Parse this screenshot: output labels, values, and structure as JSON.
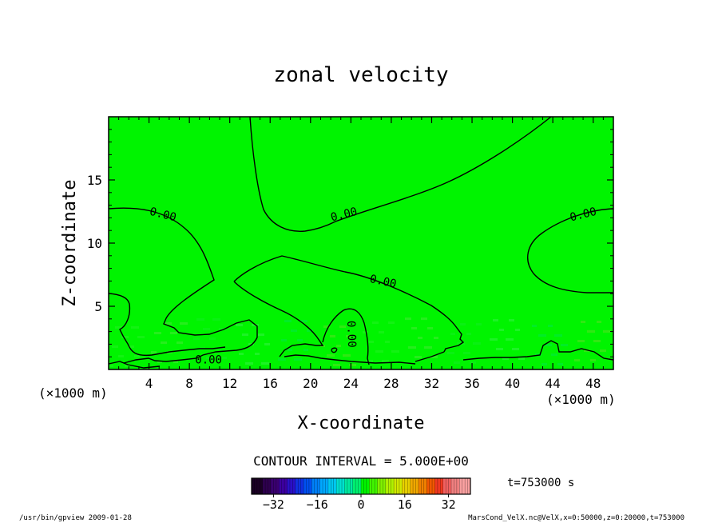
{
  "chart_data": {
    "type": "heatmap",
    "title": "zonal velocity",
    "xlabel": "X-coordinate",
    "ylabel": "Z-coordinate",
    "x_unit_left": "(×1000 m)",
    "x_unit_right": "(×1000 m)",
    "xlim": [
      0,
      50
    ],
    "ylim": [
      0,
      20
    ],
    "x_ticks": [
      4,
      8,
      12,
      16,
      20,
      24,
      28,
      32,
      36,
      40,
      44,
      48
    ],
    "y_ticks": [
      5,
      10,
      15
    ],
    "contour_interval_text": "CONTOUR INTERVAL = 5.000E+00",
    "contour_labels": [
      {
        "text": "0.00",
        "x": 5.4,
        "z": 12.3,
        "angle": 14
      },
      {
        "text": "0.00",
        "x": 23.3,
        "z": 12.3,
        "angle": -14
      },
      {
        "text": "0.00",
        "x": 47.0,
        "z": 12.3,
        "angle": -14
      },
      {
        "text": "0.00",
        "x": 27.2,
        "z": 7.0,
        "angle": 12
      },
      {
        "text": "0.00",
        "x": 24.1,
        "z": 2.8,
        "angle": 88
      },
      {
        "text": "0.00",
        "x": 9.9,
        "z": 0.8,
        "angle": 0
      }
    ],
    "field_color": "#00f400",
    "colorbar": {
      "range": [
        -40,
        40
      ],
      "ticks": [
        -32,
        -16,
        0,
        16,
        32
      ],
      "colors": [
        "#1a0024",
        "#2d004d",
        "#3a0070",
        "#3c00a0",
        "#2a10c8",
        "#1030e0",
        "#0050f0",
        "#0080f8",
        "#00a8ff",
        "#00c8f0",
        "#00e0d0",
        "#00e8a0",
        "#00f070",
        "#00f400",
        "#40f400",
        "#80f000",
        "#b0f000",
        "#d0e800",
        "#e8d000",
        "#f0a800",
        "#f08000",
        "#f05800",
        "#f03820",
        "#f06060",
        "#f08080",
        "#f8a0a0"
      ]
    },
    "time_label": "t=753000 s"
  },
  "footer": {
    "left": "/usr/bin/gpview  2009-01-28",
    "right": "MarsCond_VelX.nc@VelX,x=0:50000,z=0:20000,t=753000"
  }
}
